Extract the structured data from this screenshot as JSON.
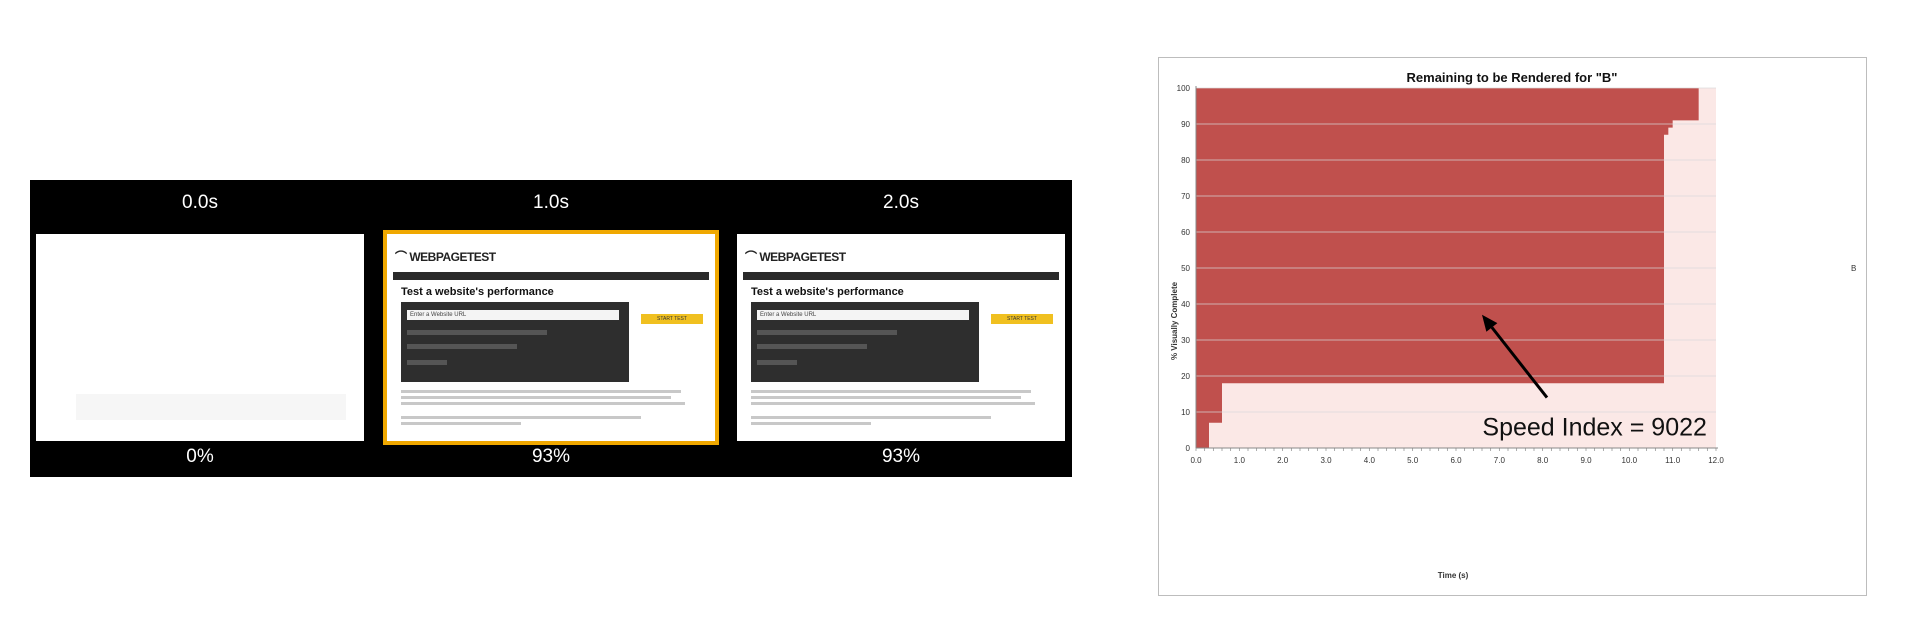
{
  "filmstrip": {
    "frames": [
      {
        "time": "0.0s",
        "percent": "0%",
        "state": "blank"
      },
      {
        "time": "1.0s",
        "percent": "93%",
        "state": "rendered"
      },
      {
        "time": "2.0s",
        "percent": "93%",
        "state": "rendered"
      }
    ],
    "screenshot": {
      "logo": "WEBPAGETEST",
      "heading": "Test a website's performance",
      "url_placeholder": "Enter a Website URL",
      "start_label": "START TEST"
    },
    "highlight_color": "#f0a800"
  },
  "chart_data": {
    "type": "area",
    "title": "Remaining to be Rendered for \"B\"",
    "xlabel": "Time (s)",
    "ylabel": "% Visually Complete",
    "xlim": [
      0,
      12
    ],
    "ylim": [
      0,
      100
    ],
    "xticks": [
      "0.0",
      "1.0",
      "2.0",
      "3.0",
      "4.0",
      "5.0",
      "6.0",
      "7.0",
      "8.0",
      "9.0",
      "10.0",
      "11.0",
      "12.0"
    ],
    "yticks": [
      "0",
      "10",
      "20",
      "30",
      "40",
      "50",
      "60",
      "70",
      "80",
      "90",
      "100"
    ],
    "grid": true,
    "legend": {
      "entries": [
        "B"
      ],
      "placement": "right"
    },
    "series": [
      {
        "name": "B",
        "x": [
          0,
          0.3,
          0.3,
          0.6,
          0.6,
          10.8,
          10.8,
          10.9,
          10.9,
          11.0,
          11.0,
          11.6,
          11.6,
          12.0
        ],
        "visually_complete": [
          0,
          0,
          7,
          7,
          18,
          18,
          87,
          87,
          89,
          89,
          91,
          91,
          100,
          100
        ]
      }
    ],
    "colors": {
      "remaining": "#c0504d",
      "complete": "#fbe8e6",
      "grid": "#d9d9d9"
    },
    "annotation": {
      "text": "Speed Index = 9022",
      "arrow_to": {
        "x": 6.6,
        "y": 37
      }
    }
  }
}
